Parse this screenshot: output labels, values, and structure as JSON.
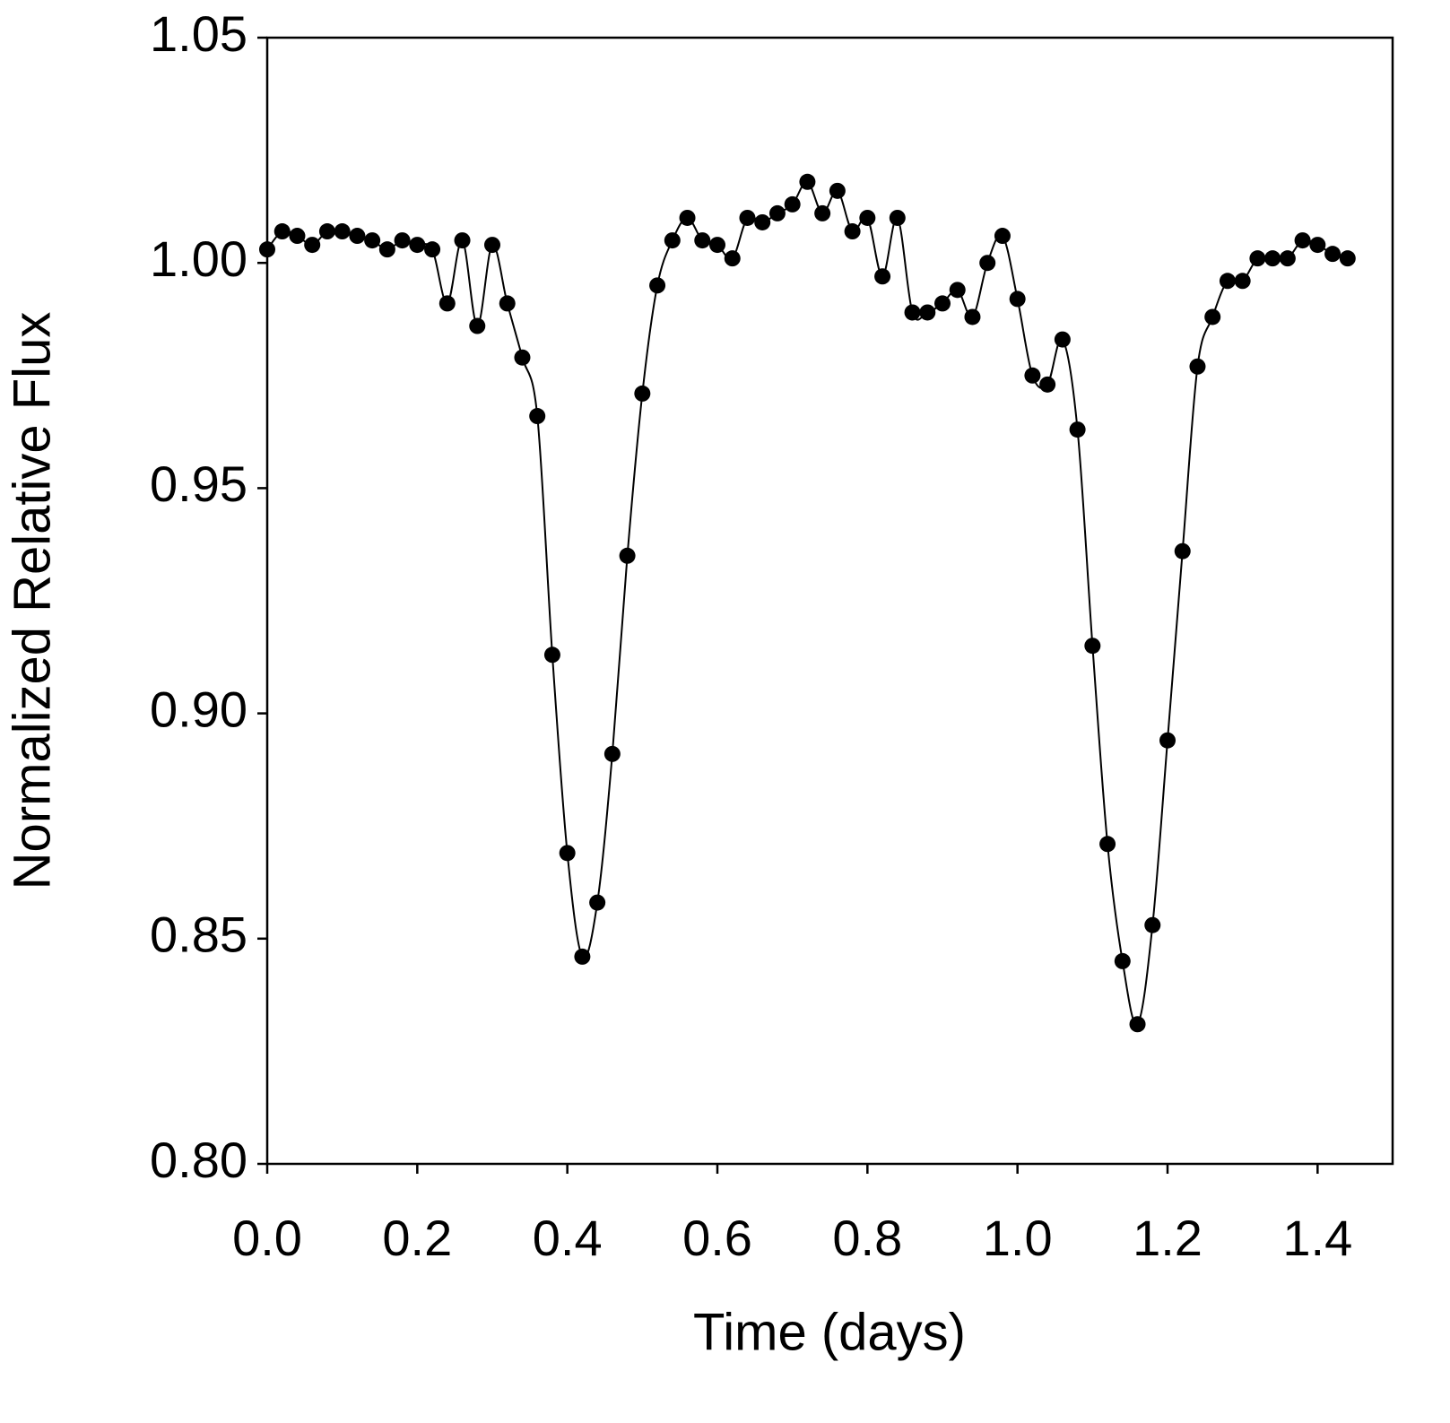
{
  "chart_data": {
    "type": "line",
    "xlabel": "Time (days)",
    "ylabel": "Normalized Relative Flux",
    "x": [
      0,
      0.02,
      0.04,
      0.06,
      0.08,
      0.1,
      0.12,
      0.14,
      0.16,
      0.18,
      0.2,
      0.22,
      0.24,
      0.26,
      0.28,
      0.3,
      0.32,
      0.34,
      0.36,
      0.38,
      0.4,
      0.42,
      0.44,
      0.46,
      0.48,
      0.5,
      0.52,
      0.54,
      0.56,
      0.58,
      0.6,
      0.62,
      0.64,
      0.66,
      0.68,
      0.7,
      0.72,
      0.74,
      0.76,
      0.78,
      0.8,
      0.82,
      0.84,
      0.86,
      0.88,
      0.9,
      0.92,
      0.94,
      0.96,
      0.98,
      1.0,
      1.02,
      1.04,
      1.06,
      1.08,
      1.1,
      1.12,
      1.14,
      1.16,
      1.18,
      1.2,
      1.22,
      1.24,
      1.26,
      1.28,
      1.3,
      1.32,
      1.34,
      1.36,
      1.38,
      1.4,
      1.42,
      1.44
    ],
    "values": [
      1.003,
      1.007,
      1.006,
      1.004,
      1.007,
      1.007,
      1.006,
      1.005,
      1.003,
      1.005,
      1.004,
      1.003,
      0.991,
      1.005,
      0.986,
      1.004,
      0.991,
      0.979,
      0.966,
      0.913,
      0.869,
      0.846,
      0.858,
      0.891,
      0.935,
      0.971,
      0.995,
      1.005,
      1.01,
      1.005,
      1.004,
      1.001,
      1.01,
      1.009,
      1.011,
      1.013,
      1.018,
      1.011,
      1.016,
      1.007,
      1.01,
      0.997,
      1.01,
      0.989,
      0.989,
      0.991,
      0.994,
      0.988,
      1.0,
      1.006,
      0.992,
      0.975,
      0.973,
      0.983,
      0.963,
      0.915,
      0.871,
      0.845,
      0.831,
      0.853,
      0.894,
      0.936,
      0.977,
      0.988,
      0.996,
      0.996,
      1.001,
      1.001,
      1.001,
      1.005,
      1.004,
      1.002,
      1.001
    ],
    "color": "#000000",
    "xlim": [
      0,
      1.5
    ],
    "ylim": [
      0.8,
      1.05
    ],
    "xticks": [
      {
        "value": 0,
        "label": "0.0"
      },
      0.2,
      0.4,
      0.6,
      0.8,
      {
        "value": 1,
        "label": "1.0"
      },
      1.2,
      1.4
    ],
    "yticks": [
      {
        "value": 0.8,
        "label": "0.80"
      },
      0.85,
      {
        "value": 0.9,
        "label": "0.90"
      },
      0.95,
      {
        "value": 1,
        "label": "1.00"
      },
      1.05
    ],
    "grid": false
  }
}
